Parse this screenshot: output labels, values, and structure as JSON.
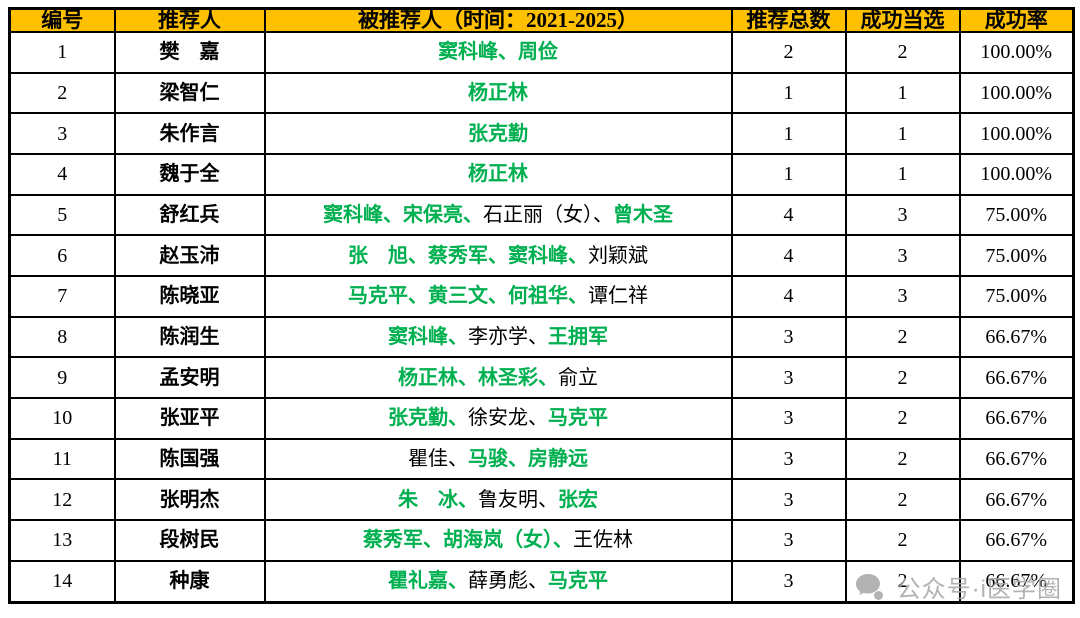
{
  "chart_data": {
    "type": "table",
    "columns": [
      "编号",
      "推荐人",
      "被推荐人（时间：2021-2025）",
      "推荐总数",
      "成功当选",
      "成功率"
    ],
    "rows": [
      {
        "id": "1",
        "recommender": "樊　嘉",
        "segments": [
          {
            "text": "窦科峰、周俭",
            "elected": true
          }
        ],
        "total": "2",
        "elected_count": "2",
        "rate": "100.00%"
      },
      {
        "id": "2",
        "recommender": "梁智仁",
        "segments": [
          {
            "text": "杨正林",
            "elected": true
          }
        ],
        "total": "1",
        "elected_count": "1",
        "rate": "100.00%"
      },
      {
        "id": "3",
        "recommender": "朱作言",
        "segments": [
          {
            "text": "张克勤",
            "elected": true
          }
        ],
        "total": "1",
        "elected_count": "1",
        "rate": "100.00%"
      },
      {
        "id": "4",
        "recommender": "魏于全",
        "segments": [
          {
            "text": "杨正林",
            "elected": true
          }
        ],
        "total": "1",
        "elected_count": "1",
        "rate": "100.00%"
      },
      {
        "id": "5",
        "recommender": "舒红兵",
        "segments": [
          {
            "text": "窦科峰、宋保亮、",
            "elected": true
          },
          {
            "text": "石正丽（女）、",
            "elected": false
          },
          {
            "text": "曾木圣",
            "elected": true
          }
        ],
        "total": "4",
        "elected_count": "3",
        "rate": "75.00%"
      },
      {
        "id": "6",
        "recommender": "赵玉沛",
        "segments": [
          {
            "text": "张　旭、蔡秀军、窦科峰、",
            "elected": true
          },
          {
            "text": "刘颖斌",
            "elected": false
          }
        ],
        "total": "4",
        "elected_count": "3",
        "rate": "75.00%"
      },
      {
        "id": "7",
        "recommender": "陈晓亚",
        "segments": [
          {
            "text": "马克平、黄三文、何祖华、",
            "elected": true
          },
          {
            "text": "谭仁祥",
            "elected": false
          }
        ],
        "total": "4",
        "elected_count": "3",
        "rate": "75.00%"
      },
      {
        "id": "8",
        "recommender": "陈润生",
        "segments": [
          {
            "text": "窦科峰、",
            "elected": true
          },
          {
            "text": "李亦学、",
            "elected": false
          },
          {
            "text": "王拥军",
            "elected": true
          }
        ],
        "total": "3",
        "elected_count": "2",
        "rate": "66.67%"
      },
      {
        "id": "9",
        "recommender": "孟安明",
        "segments": [
          {
            "text": "杨正林、林圣彩、",
            "elected": true
          },
          {
            "text": "俞立",
            "elected": false
          }
        ],
        "total": "3",
        "elected_count": "2",
        "rate": "66.67%"
      },
      {
        "id": "10",
        "recommender": "张亚平",
        "segments": [
          {
            "text": "张克勤、",
            "elected": true
          },
          {
            "text": "徐安龙、",
            "elected": false
          },
          {
            "text": "马克平",
            "elected": true
          }
        ],
        "total": "3",
        "elected_count": "2",
        "rate": "66.67%"
      },
      {
        "id": "11",
        "recommender": "陈国强",
        "segments": [
          {
            "text": "瞿佳、",
            "elected": false
          },
          {
            "text": "马骏、房静远",
            "elected": true
          }
        ],
        "total": "3",
        "elected_count": "2",
        "rate": "66.67%"
      },
      {
        "id": "12",
        "recommender": "张明杰",
        "segments": [
          {
            "text": "朱　冰、",
            "elected": true
          },
          {
            "text": "鲁友明、",
            "elected": false
          },
          {
            "text": "张宏",
            "elected": true
          }
        ],
        "total": "3",
        "elected_count": "2",
        "rate": "66.67%"
      },
      {
        "id": "13",
        "recommender": "段树民",
        "segments": [
          {
            "text": "蔡秀军、胡海岚（女）、",
            "elected": true
          },
          {
            "text": "王佐林",
            "elected": false
          }
        ],
        "total": "3",
        "elected_count": "2",
        "rate": "66.67%"
      },
      {
        "id": "14",
        "recommender": "种康",
        "segments": [
          {
            "text": "瞿礼嘉、",
            "elected": true
          },
          {
            "text": "薛勇彪、",
            "elected": false
          },
          {
            "text": "马克平",
            "elected": true
          }
        ],
        "total": "3",
        "elected_count": "2",
        "rate": "66.67%"
      }
    ]
  },
  "watermark": {
    "text": "公众号·i医学圈",
    "icon": "official-account-bubble-icon"
  },
  "colors": {
    "header_bg": "#FFC000",
    "elected_green": "#00B050",
    "not_elected_black": "#000000",
    "border": "#000000",
    "watermark_gray": "#A8A8A8"
  }
}
